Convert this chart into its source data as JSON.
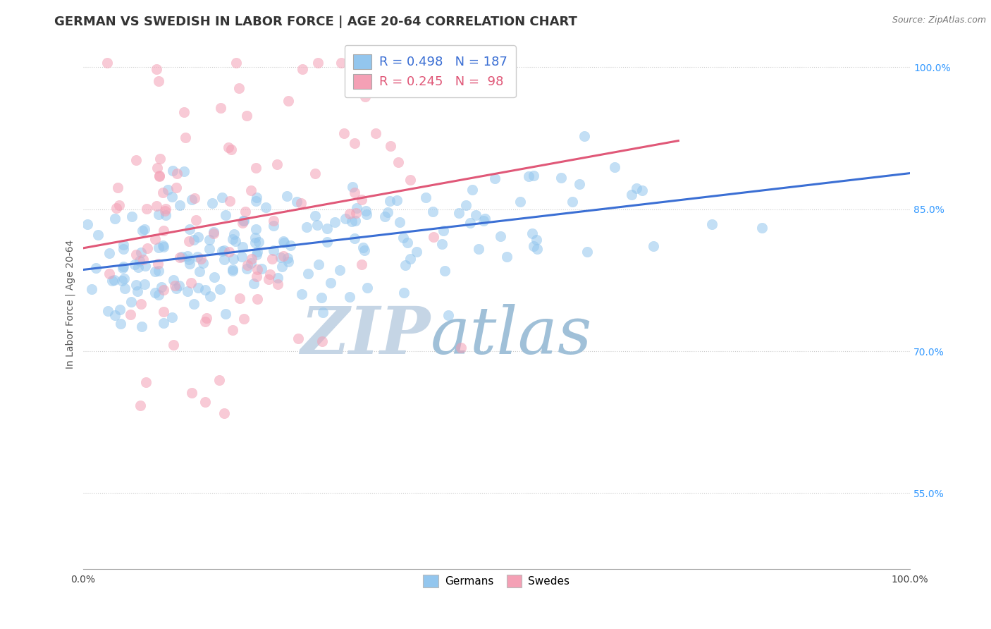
{
  "title": "GERMAN VS SWEDISH IN LABOR FORCE | AGE 20-64 CORRELATION CHART",
  "source": "Source: ZipAtlas.com",
  "ylabel": "In Labor Force | Age 20-64",
  "xlim": [
    0.0,
    1.0
  ],
  "ylim": [
    0.47,
    1.03
  ],
  "x_tick_labels": [
    "0.0%",
    "100.0%"
  ],
  "y_ticks": [
    0.55,
    0.7,
    0.85,
    1.0
  ],
  "y_tick_labels": [
    "55.0%",
    "70.0%",
    "85.0%",
    "100.0%"
  ],
  "german_R": 0.498,
  "german_N": 187,
  "swedish_R": 0.245,
  "swedish_N": 98,
  "german_color": "#93C6EE",
  "swedish_color": "#F4A0B5",
  "trendline_german_color": "#3B6FD4",
  "trendline_swedish_color": "#E05878",
  "watermark_zip": "ZIP",
  "watermark_atlas": "atlas",
  "watermark_color_zip": "#C5D5E5",
  "watermark_color_atlas": "#A0C0D8",
  "background_color": "#FFFFFF",
  "grid_color": "#CCCCCC",
  "legend_german_label": "R = 0.498   N = 187",
  "legend_swedish_label": "R = 0.245   N =  98",
  "bottom_legend_german": "Germans",
  "bottom_legend_swedish": "Swedes",
  "title_fontsize": 13,
  "source_fontsize": 9,
  "axis_label_fontsize": 10,
  "tick_fontsize": 10,
  "legend_fontsize": 13,
  "right_tick_color": "#3399FF"
}
